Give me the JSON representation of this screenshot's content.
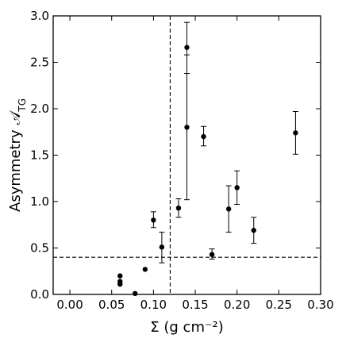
{
  "chart_data": {
    "type": "scatter",
    "xlabel": "Σ (g cm⁻²)",
    "ylabel": "Asymmetry 𝒜",
    "ylabel_subscript": "TG",
    "xlim": [
      -0.02,
      0.3
    ],
    "ylim": [
      0.0,
      3.0
    ],
    "xticks": [
      0.0,
      0.05,
      0.1,
      0.15,
      0.2,
      0.25,
      0.3
    ],
    "xtick_labels": [
      "0.00",
      "0.05",
      "0.10",
      "0.15",
      "0.20",
      "0.25",
      "0.30"
    ],
    "yticks": [
      0.0,
      0.5,
      1.0,
      1.5,
      2.0,
      2.5,
      3.0
    ],
    "ytick_labels": [
      "0.0",
      "0.5",
      "1.0",
      "1.5",
      "2.0",
      "2.5",
      "3.0"
    ],
    "grid": false,
    "points": [
      {
        "x": 0.06,
        "y": 0.2
      },
      {
        "x": 0.06,
        "y": 0.14
      },
      {
        "x": 0.06,
        "y": 0.11
      },
      {
        "x": 0.078,
        "y": 0.01
      },
      {
        "x": 0.09,
        "y": 0.27
      },
      {
        "x": 0.1,
        "y": 0.8,
        "err_low": 0.08,
        "err_high": 0.09
      },
      {
        "x": 0.11,
        "y": 0.51,
        "err_low": 0.17,
        "err_high": 0.16
      },
      {
        "x": 0.13,
        "y": 0.93,
        "err_low": 0.1,
        "err_high": 0.1
      },
      {
        "x": 0.14,
        "y": 2.66,
        "err_low": 0.28,
        "err_high": 0.27
      },
      {
        "x": 0.14,
        "y": 1.8,
        "err_low": 0.78,
        "err_high": 0.78
      },
      {
        "x": 0.16,
        "y": 1.7,
        "err_low": 0.1,
        "err_high": 0.11
      },
      {
        "x": 0.17,
        "y": 0.43,
        "err_low": 0.05,
        "err_high": 0.06
      },
      {
        "x": 0.19,
        "y": 0.92,
        "err_low": 0.25,
        "err_high": 0.25
      },
      {
        "x": 0.2,
        "y": 1.15,
        "err_low": 0.18,
        "err_high": 0.18
      },
      {
        "x": 0.22,
        "y": 0.69,
        "err_low": 0.14,
        "err_high": 0.14
      },
      {
        "x": 0.27,
        "y": 1.74,
        "err_low": 0.23,
        "err_high": 0.23
      }
    ],
    "reference_lines": [
      {
        "orientation": "vertical",
        "value": 0.12,
        "style": "dashed"
      },
      {
        "orientation": "horizontal",
        "value": 0.4,
        "style": "dashed"
      }
    ]
  }
}
